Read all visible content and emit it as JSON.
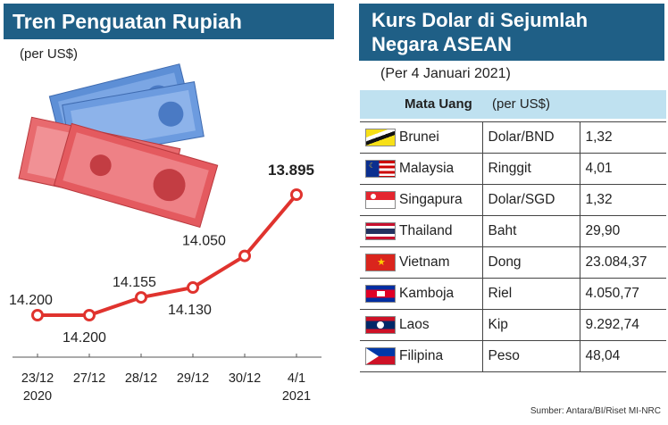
{
  "left": {
    "title": "Tren Penguatan Rupiah",
    "unit": "(per US$)"
  },
  "chart_data": {
    "type": "line",
    "title": "Tren Penguatan Rupiah",
    "ylabel": "(per US$)",
    "categories": [
      "23/12 2020",
      "27/12",
      "28/12",
      "29/12",
      "30/12",
      "4/1 2021"
    ],
    "tick_labels": [
      [
        "23/12",
        "2020"
      ],
      [
        "27/12",
        ""
      ],
      [
        "28/12",
        ""
      ],
      [
        "29/12",
        ""
      ],
      [
        "30/12",
        ""
      ],
      [
        "4/1",
        "2021"
      ]
    ],
    "values": [
      14200,
      14200,
      14155,
      14130,
      14050,
      13895
    ],
    "data_labels": [
      "14.200",
      "14.200",
      "14.155",
      "14.130",
      "14.050",
      "13.895"
    ],
    "y_axis_inverted": true,
    "line_color": "#e0332e",
    "grid": false
  },
  "right": {
    "title_line1": "Kurs Dolar di Sejumlah",
    "title_line2": "Negara ASEAN",
    "subtitle": "(Per 4 Januari 2021)",
    "header_currency": "Mata Uang",
    "header_unit": "(per US$)",
    "rows": [
      {
        "flag": "brunei-flag",
        "country": "Brunei",
        "currency": "Dolar/BND",
        "value": "1,32"
      },
      {
        "flag": "malaysia-flag",
        "country": "Malaysia",
        "currency": "Ringgit",
        "value": "4,01"
      },
      {
        "flag": "singapore-flag",
        "country": "Singapura",
        "currency": "Dolar/SGD",
        "value": "1,32"
      },
      {
        "flag": "thailand-flag",
        "country": "Thailand",
        "currency": "Baht",
        "value": "29,90"
      },
      {
        "flag": "vietnam-flag",
        "country": "Vietnam",
        "currency": "Dong",
        "value": "23.084,37"
      },
      {
        "flag": "cambodia-flag",
        "country": "Kamboja",
        "currency": "Riel",
        "value": "4.050,77"
      },
      {
        "flag": "laos-flag",
        "country": "Laos",
        "currency": "Kip",
        "value": "9.292,74"
      },
      {
        "flag": "philippines-flag",
        "country": "Filipina",
        "currency": "Peso",
        "value": "48,04"
      }
    ]
  },
  "source": "Sumber: Antara/BI/Riset MI-NRC",
  "colors": {
    "title_bg": "#1f5f86",
    "table_header_bg": "#bfe1f0",
    "line": "#e0332e"
  }
}
